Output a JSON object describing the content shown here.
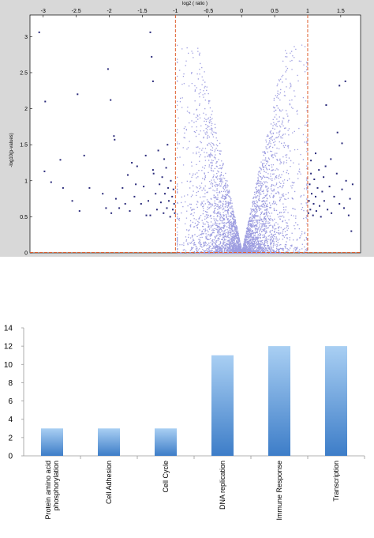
{
  "chart_data": [
    {
      "type": "scatter",
      "title": "",
      "xlabel": "log2 ( ratio )",
      "ylabel": "-log10(p-values)",
      "xlim": [
        -3.2,
        1.8
      ],
      "ylim": [
        0,
        3.3
      ],
      "x_ticks": [
        "-3",
        "-2.5",
        "-2",
        "-1.5",
        "-1",
        "-0.5",
        "0",
        "0.5",
        "1",
        "1.5"
      ],
      "y_ticks": [
        "0",
        "0.5",
        "1",
        "1.5",
        "2",
        "2.5",
        "3"
      ],
      "x_axis_position": "top",
      "grid": false,
      "thresholds": {
        "x": [
          -1,
          1
        ],
        "y": [
          0
        ],
        "style": "dashed",
        "color": "#e06030"
      },
      "colors": {
        "significant": "#2a2a7a",
        "non_significant": "#9d9de0",
        "frame_bg": "#d8d8d8"
      },
      "series": [
        {
          "points": [
            [
              -3.06,
              3.06
            ],
            [
              -2.97,
              2.1
            ],
            [
              -2.48,
              2.2
            ],
            [
              -2.02,
              2.55
            ],
            [
              -1.98,
              2.12
            ],
            [
              -1.93,
              1.62
            ],
            [
              -1.92,
              1.57
            ],
            [
              -1.38,
              3.06
            ],
            [
              -1.36,
              2.72
            ],
            [
              -1.34,
              2.38
            ],
            [
              1.28,
              2.05
            ],
            [
              1.48,
              2.32
            ],
            [
              1.52,
              1.52
            ],
            [
              1.57,
              2.38
            ],
            [
              1.45,
              1.67
            ],
            [
              -2.98,
              1.13
            ],
            [
              -2.88,
              0.98
            ],
            [
              -2.74,
              1.29
            ],
            [
              -2.7,
              0.9
            ],
            [
              -2.56,
              0.72
            ],
            [
              -2.45,
              0.58
            ],
            [
              -2.38,
              1.35
            ],
            [
              -2.3,
              0.9
            ],
            [
              -2.1,
              0.82
            ],
            [
              -2.05,
              0.62
            ],
            [
              -1.97,
              0.55
            ],
            [
              -1.9,
              0.75
            ],
            [
              -1.85,
              0.62
            ],
            [
              -1.8,
              0.9
            ],
            [
              -1.76,
              0.68
            ],
            [
              -1.72,
              1.08
            ],
            [
              -1.69,
              0.58
            ],
            [
              -1.62,
              0.78
            ],
            [
              -1.58,
              1.2
            ],
            [
              -1.52,
              0.68
            ],
            [
              -1.48,
              0.92
            ],
            [
              -1.45,
              1.35
            ],
            [
              -1.41,
              0.72
            ],
            [
              -1.38,
              0.52
            ],
            [
              -1.33,
              1.1
            ],
            [
              -1.3,
              0.82
            ],
            [
              -1.28,
              0.6
            ],
            [
              -1.26,
              1.42
            ],
            [
              -1.24,
              0.95
            ],
            [
              -1.22,
              0.7
            ],
            [
              -1.2,
              1.05
            ],
            [
              -1.18,
              0.55
            ],
            [
              -1.16,
              0.82
            ],
            [
              -1.14,
              1.18
            ],
            [
              -1.13,
              0.62
            ],
            [
              -1.11,
              0.9
            ],
            [
              -1.1,
              0.72
            ],
            [
              -1.08,
              0.5
            ],
            [
              -1.07,
              1.0
            ],
            [
              -1.05,
              0.78
            ],
            [
              -1.04,
              0.6
            ],
            [
              -1.03,
              0.88
            ],
            [
              -1.02,
              0.68
            ],
            [
              -1.01,
              0.55
            ],
            [
              -1.12,
              1.5
            ],
            [
              -1.17,
              1.3
            ],
            [
              -1.34,
              1.15
            ],
            [
              -1.44,
              0.52
            ],
            [
              -1.6,
              0.95
            ],
            [
              -1.66,
              1.25
            ],
            [
              1.01,
              0.55
            ],
            [
              1.02,
              0.72
            ],
            [
              1.03,
              0.95
            ],
            [
              1.04,
              0.6
            ],
            [
              1.05,
              1.1
            ],
            [
              1.06,
              0.82
            ],
            [
              1.08,
              0.52
            ],
            [
              1.09,
              0.68
            ],
            [
              1.1,
              1.02
            ],
            [
              1.12,
              0.78
            ],
            [
              1.13,
              0.58
            ],
            [
              1.15,
              0.9
            ],
            [
              1.17,
              1.15
            ],
            [
              1.18,
              0.65
            ],
            [
              1.2,
              0.5
            ],
            [
              1.22,
              0.85
            ],
            [
              1.25,
              0.72
            ],
            [
              1.27,
              1.2
            ],
            [
              1.3,
              0.6
            ],
            [
              1.33,
              0.92
            ],
            [
              1.36,
              0.55
            ],
            [
              1.4,
              0.78
            ],
            [
              1.44,
              1.1
            ],
            [
              1.48,
              0.68
            ],
            [
              1.52,
              0.88
            ],
            [
              1.55,
              0.62
            ],
            [
              1.58,
              1.0
            ],
            [
              1.62,
              0.52
            ],
            [
              1.64,
              0.75
            ],
            [
              1.66,
              0.3
            ],
            [
              1.68,
              0.95
            ],
            [
              1.05,
              1.28
            ],
            [
              1.12,
              1.38
            ],
            [
              1.24,
              1.05
            ],
            [
              1.35,
              1.3
            ]
          ]
        }
      ]
    },
    {
      "type": "bar",
      "title": "",
      "xlabel": "",
      "ylabel": "",
      "categories": [
        "Protein amino acid phosphorylation",
        "Cell Adhesion",
        "Cell Cycle",
        "DNA replication",
        "Immune Response",
        "Transcription"
      ],
      "category_lines": [
        [
          "Protein amino acid",
          "phosphorylation"
        ],
        [
          "Cell Adhesion"
        ],
        [
          "Cell Cycle"
        ],
        [
          "DNA replication"
        ],
        [
          "Immune Response"
        ],
        [
          "Transcription"
        ]
      ],
      "values": [
        3,
        3,
        3,
        11,
        12,
        12
      ],
      "ylim": [
        0,
        14
      ],
      "y_ticks": [
        "0",
        "2",
        "4",
        "6",
        "8",
        "10",
        "12",
        "14"
      ],
      "grid": false,
      "colors": {
        "bar_top": "#a9cff3",
        "bar_bottom": "#3d7dc8"
      }
    }
  ]
}
